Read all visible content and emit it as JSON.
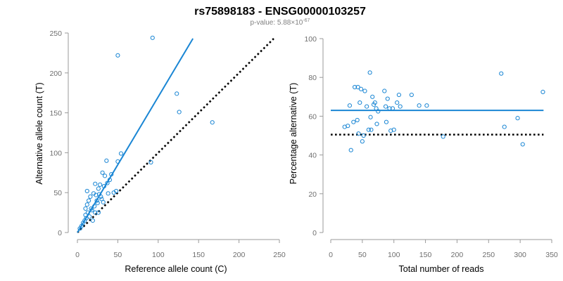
{
  "header": {
    "title": "rs75898183 - ENSG00000103257",
    "subtitle_prefix": "p-value: 5.88×10",
    "subtitle_exponent": "-67"
  },
  "colors": {
    "points": "#1a86d4",
    "fit_line": "#1a86d4",
    "reference_line": "#000000",
    "axis": "#9a9a9a",
    "tick_text": "#6e6e6e"
  },
  "chart_data": [
    {
      "type": "scatter",
      "title": "",
      "xlabel": "Reference allele count (C)",
      "ylabel": "Alternative allele count (T)",
      "xlim": [
        0,
        250
      ],
      "ylim": [
        0,
        250
      ],
      "xticks": [
        0,
        50,
        100,
        150,
        200,
        250
      ],
      "yticks": [
        0,
        50,
        100,
        150,
        200,
        250
      ],
      "grid": false,
      "points": [
        {
          "x": 3,
          "y": 5
        },
        {
          "x": 5,
          "y": 8
        },
        {
          "x": 7,
          "y": 12
        },
        {
          "x": 9,
          "y": 15
        },
        {
          "x": 10,
          "y": 22
        },
        {
          "x": 10,
          "y": 30
        },
        {
          "x": 11,
          "y": 18
        },
        {
          "x": 12,
          "y": 52
        },
        {
          "x": 12,
          "y": 35
        },
        {
          "x": 13,
          "y": 25
        },
        {
          "x": 14,
          "y": 40
        },
        {
          "x": 15,
          "y": 20
        },
        {
          "x": 16,
          "y": 45
        },
        {
          "x": 17,
          "y": 30
        },
        {
          "x": 18,
          "y": 28
        },
        {
          "x": 19,
          "y": 15
        },
        {
          "x": 20,
          "y": 49
        },
        {
          "x": 21,
          "y": 33
        },
        {
          "x": 22,
          "y": 25
        },
        {
          "x": 22,
          "y": 61
        },
        {
          "x": 23,
          "y": 47
        },
        {
          "x": 24,
          "y": 40
        },
        {
          "x": 25,
          "y": 37
        },
        {
          "x": 26,
          "y": 25
        },
        {
          "x": 26,
          "y": 55
        },
        {
          "x": 27,
          "y": 48
        },
        {
          "x": 28,
          "y": 60
        },
        {
          "x": 29,
          "y": 45
        },
        {
          "x": 30,
          "y": 42
        },
        {
          "x": 31,
          "y": 75
        },
        {
          "x": 32,
          "y": 38
        },
        {
          "x": 33,
          "y": 58
        },
        {
          "x": 34,
          "y": 71
        },
        {
          "x": 36,
          "y": 90
        },
        {
          "x": 37,
          "y": 62
        },
        {
          "x": 38,
          "y": 49
        },
        {
          "x": 40,
          "y": 66
        },
        {
          "x": 42,
          "y": 73
        },
        {
          "x": 45,
          "y": 50
        },
        {
          "x": 48,
          "y": 52
        },
        {
          "x": 50,
          "y": 89
        },
        {
          "x": 50,
          "y": 222
        },
        {
          "x": 54,
          "y": 99
        },
        {
          "x": 93,
          "y": 244
        },
        {
          "x": 91,
          "y": 88
        },
        {
          "x": 123,
          "y": 174
        },
        {
          "x": 126,
          "y": 151
        },
        {
          "x": 167,
          "y": 138
        }
      ],
      "fit_line": {
        "slope": 1.7,
        "x_range": [
          0,
          143
        ]
      },
      "reference_line": {
        "slope": 1.0,
        "x_range": [
          0,
          243
        ]
      }
    },
    {
      "type": "scatter",
      "title": "",
      "xlabel": "Total number of reads",
      "ylabel": "Percentage alternative (T)",
      "xlim": [
        0,
        350
      ],
      "ylim": [
        0,
        100
      ],
      "xticks": [
        0,
        50,
        100,
        150,
        200,
        250,
        300,
        350
      ],
      "yticks": [
        0,
        20,
        40,
        60,
        80,
        100
      ],
      "grid": false,
      "points": [
        {
          "x": 22,
          "y": 54.5
        },
        {
          "x": 27,
          "y": 55
        },
        {
          "x": 30,
          "y": 65.5
        },
        {
          "x": 32,
          "y": 42.5
        },
        {
          "x": 36,
          "y": 57
        },
        {
          "x": 38,
          "y": 75
        },
        {
          "x": 42,
          "y": 58
        },
        {
          "x": 43,
          "y": 75
        },
        {
          "x": 44,
          "y": 51
        },
        {
          "x": 46,
          "y": 67
        },
        {
          "x": 48,
          "y": 74
        },
        {
          "x": 50,
          "y": 47
        },
        {
          "x": 52,
          "y": 50
        },
        {
          "x": 54,
          "y": 73
        },
        {
          "x": 57,
          "y": 65
        },
        {
          "x": 60,
          "y": 53
        },
        {
          "x": 62,
          "y": 82.5
        },
        {
          "x": 63,
          "y": 59.5
        },
        {
          "x": 64,
          "y": 53
        },
        {
          "x": 66,
          "y": 70
        },
        {
          "x": 68,
          "y": 66
        },
        {
          "x": 70,
          "y": 67
        },
        {
          "x": 72,
          "y": 64
        },
        {
          "x": 73,
          "y": 56
        },
        {
          "x": 75,
          "y": 62.5
        },
        {
          "x": 85,
          "y": 73
        },
        {
          "x": 87,
          "y": 65
        },
        {
          "x": 88,
          "y": 57
        },
        {
          "x": 90,
          "y": 69
        },
        {
          "x": 93,
          "y": 64
        },
        {
          "x": 95,
          "y": 52.5
        },
        {
          "x": 98,
          "y": 64
        },
        {
          "x": 100,
          "y": 53
        },
        {
          "x": 105,
          "y": 67
        },
        {
          "x": 108,
          "y": 71
        },
        {
          "x": 110,
          "y": 65
        },
        {
          "x": 128,
          "y": 71
        },
        {
          "x": 140,
          "y": 65.5
        },
        {
          "x": 152,
          "y": 65.5
        },
        {
          "x": 178,
          "y": 49.5
        },
        {
          "x": 270,
          "y": 82
        },
        {
          "x": 275,
          "y": 54.5
        },
        {
          "x": 296,
          "y": 59
        },
        {
          "x": 304,
          "y": 45.5
        },
        {
          "x": 336,
          "y": 72.5
        }
      ],
      "fit_line": {
        "y": 63,
        "x_range": [
          0,
          337
        ]
      },
      "reference_line": {
        "y": 50.5,
        "x_range": [
          0,
          337
        ]
      }
    }
  ]
}
